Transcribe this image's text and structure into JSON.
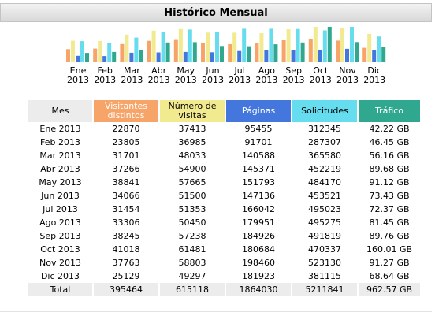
{
  "title": "Histórico Mensual",
  "colors": {
    "visitors": "#f7a468",
    "visits": "#f2ea8e",
    "pages": "#4477dd",
    "requests": "#66ddee",
    "traffic": "#2fa88f"
  },
  "months": [
    {
      "m": "Ene",
      "y": "2013"
    },
    {
      "m": "Feb",
      "y": "2013"
    },
    {
      "m": "Mar",
      "y": "2013"
    },
    {
      "m": "Abr",
      "y": "2013"
    },
    {
      "m": "May",
      "y": "2013"
    },
    {
      "m": "Jun",
      "y": "2013"
    },
    {
      "m": "Jul",
      "y": "2013"
    },
    {
      "m": "Ago",
      "y": "2013"
    },
    {
      "m": "Sep",
      "y": "2013"
    },
    {
      "m": "Oct",
      "y": "2013"
    },
    {
      "m": "Nov",
      "y": "2013"
    },
    {
      "m": "Dic",
      "y": "2013"
    }
  ],
  "table": {
    "headers": {
      "mes": "Mes",
      "visitors": "Visitantes distintos",
      "visits": "Número de visitas",
      "pages": "Páginas",
      "requests": "Solicitudes",
      "traffic": "Tráfico"
    },
    "rows": [
      {
        "mes": "Ene 2013",
        "visitors": "22870",
        "visits": "37413",
        "pages": "95455",
        "requests": "312345",
        "traffic": "42.22 GB"
      },
      {
        "mes": "Feb 2013",
        "visitors": "23805",
        "visits": "36985",
        "pages": "91701",
        "requests": "287307",
        "traffic": "46.45 GB"
      },
      {
        "mes": "Mar 2013",
        "visitors": "31701",
        "visits": "48033",
        "pages": "140588",
        "requests": "365580",
        "traffic": "56.16 GB"
      },
      {
        "mes": "Abr 2013",
        "visitors": "37266",
        "visits": "54900",
        "pages": "145371",
        "requests": "452219",
        "traffic": "89.68 GB"
      },
      {
        "mes": "May 2013",
        "visitors": "38841",
        "visits": "57665",
        "pages": "151793",
        "requests": "484170",
        "traffic": "91.12 GB"
      },
      {
        "mes": "Jun 2013",
        "visitors": "34066",
        "visits": "51500",
        "pages": "147136",
        "requests": "453521",
        "traffic": "73.43 GB"
      },
      {
        "mes": "Jul 2013",
        "visitors": "31454",
        "visits": "51353",
        "pages": "166042",
        "requests": "495023",
        "traffic": "72.37 GB"
      },
      {
        "mes": "Ago 2013",
        "visitors": "33306",
        "visits": "50450",
        "pages": "179951",
        "requests": "495275",
        "traffic": "81.45 GB"
      },
      {
        "mes": "Sep 2013",
        "visitors": "38245",
        "visits": "57238",
        "pages": "184926",
        "requests": "491819",
        "traffic": "89.76 GB"
      },
      {
        "mes": "Oct 2013",
        "visitors": "41018",
        "visits": "61481",
        "pages": "180684",
        "requests": "470337",
        "traffic": "160.01 GB"
      },
      {
        "mes": "Nov 2013",
        "visitors": "37763",
        "visits": "58803",
        "pages": "198460",
        "requests": "523130",
        "traffic": "91.27 GB"
      },
      {
        "mes": "Dic 2013",
        "visitors": "25129",
        "visits": "49297",
        "pages": "181923",
        "requests": "381115",
        "traffic": "68.64 GB"
      }
    ],
    "total": {
      "mes": "Total",
      "visitors": "395464",
      "visits": "615118",
      "pages": "1864030",
      "requests": "5211841",
      "traffic": "962.57 GB"
    }
  }
}
